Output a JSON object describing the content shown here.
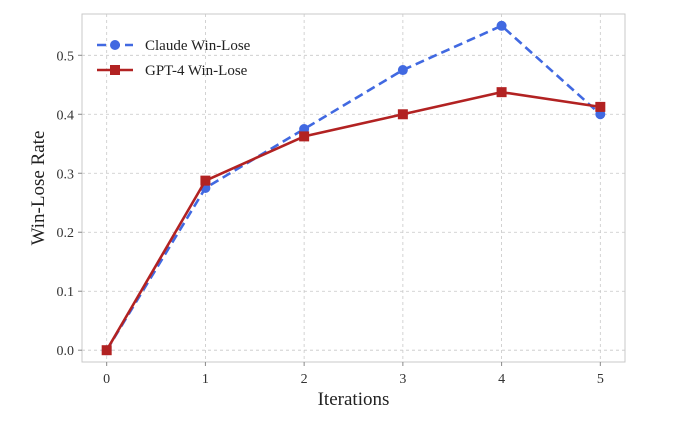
{
  "chart_data": {
    "type": "line",
    "title": "",
    "xlabel": "Iterations",
    "ylabel": "Win-Lose Rate",
    "x": [
      0,
      1,
      2,
      3,
      4,
      5
    ],
    "xlim": [
      -0.25,
      5.25
    ],
    "ylim": [
      -0.02,
      0.57
    ],
    "xticks": [
      0,
      1,
      2,
      3,
      4,
      5
    ],
    "yticks": [
      0.0,
      0.1,
      0.2,
      0.3,
      0.4,
      0.5
    ],
    "xtick_labels": [
      "0",
      "1",
      "2",
      "3",
      "4",
      "5"
    ],
    "ytick_labels": [
      "0.0",
      "0.1",
      "0.2",
      "0.3",
      "0.4",
      "0.5"
    ],
    "grid": true,
    "legend_position": "top-left",
    "series": [
      {
        "name": "Claude Win-Lose",
        "values": [
          0.0,
          0.275,
          0.375,
          0.475,
          0.55,
          0.4
        ],
        "color": "#4169e1",
        "line_style": "dashed",
        "marker": "circle"
      },
      {
        "name": "GPT-4 Win-Lose",
        "values": [
          0.0,
          0.2875,
          0.3625,
          0.4,
          0.4375,
          0.4125
        ],
        "color": "#b22222",
        "line_style": "solid",
        "marker": "square"
      }
    ]
  }
}
